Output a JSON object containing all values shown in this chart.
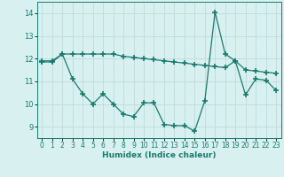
{
  "xlabel": "Humidex (Indice chaleur)",
  "x": [
    0,
    1,
    2,
    3,
    4,
    5,
    6,
    7,
    8,
    9,
    10,
    11,
    12,
    13,
    14,
    15,
    16,
    17,
    18,
    19,
    20,
    21,
    22,
    23
  ],
  "line1": [
    11.9,
    11.9,
    12.2,
    12.2,
    12.2,
    12.2,
    12.2,
    12.2,
    12.1,
    12.05,
    12.0,
    11.95,
    11.9,
    11.85,
    11.8,
    11.75,
    11.7,
    11.65,
    11.6,
    11.9,
    11.5,
    11.45,
    11.4,
    11.35
  ],
  "line2": [
    11.85,
    11.85,
    12.2,
    11.1,
    10.45,
    10.0,
    10.45,
    10.0,
    9.55,
    9.45,
    10.05,
    10.05,
    9.1,
    9.05,
    9.05,
    8.8,
    10.15,
    14.05,
    12.2,
    11.9,
    10.4,
    11.1,
    11.05,
    10.6
  ],
  "line_color": "#1a7a6e",
  "bg_color": "#d8f0f0",
  "grid_color": "#c0dede",
  "ylim": [
    8.5,
    14.5
  ],
  "yticks": [
    9,
    10,
    11,
    12,
    13,
    14
  ],
  "xticks": [
    0,
    1,
    2,
    3,
    4,
    5,
    6,
    7,
    8,
    9,
    10,
    11,
    12,
    13,
    14,
    15,
    16,
    17,
    18,
    19,
    20,
    21,
    22,
    23
  ],
  "marker": "+",
  "markersize": 4,
  "markeredgewidth": 1.2,
  "linewidth": 0.9,
  "tick_fontsize": 5.5,
  "xlabel_fontsize": 6.5
}
